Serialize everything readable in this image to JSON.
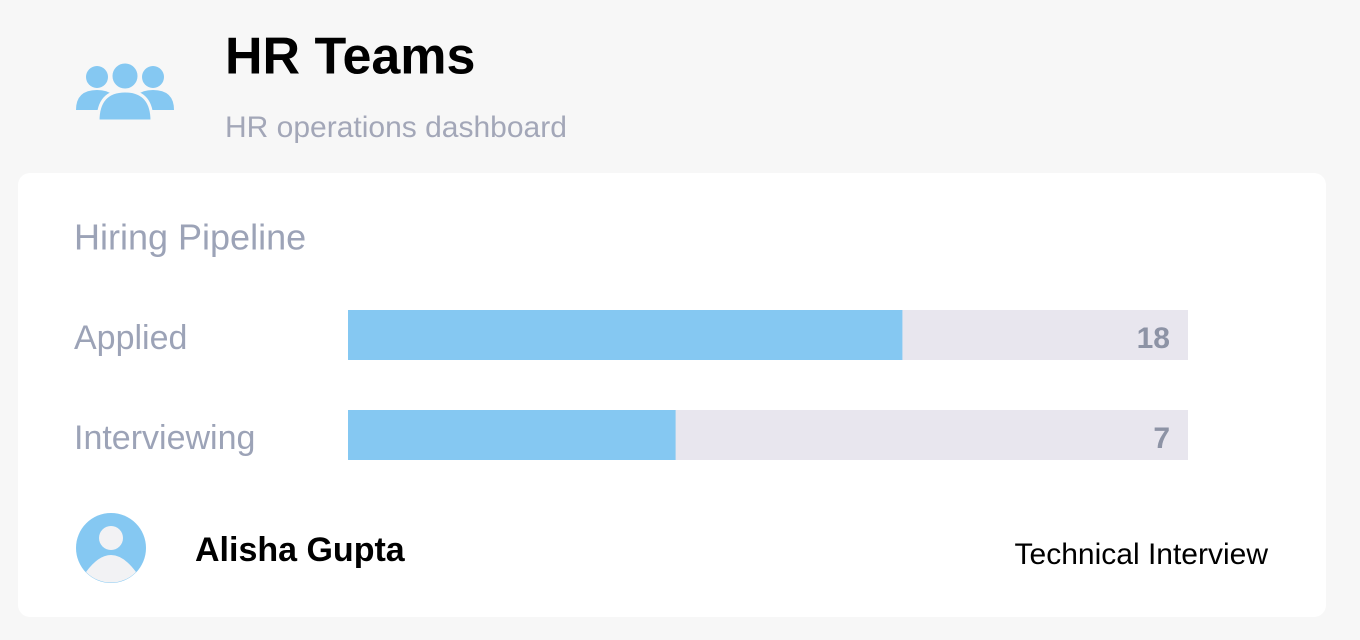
{
  "header": {
    "title": "HR Teams",
    "subtitle": "HR operations dashboard"
  },
  "pipeline": {
    "title": "Hiring Pipeline",
    "stages": [
      {
        "label": "Applied",
        "count": 18,
        "fill_percent": 66
      },
      {
        "label": "Interviewing",
        "count": 7,
        "fill_percent": 39
      }
    ]
  },
  "candidate": {
    "name": "Alisha Gupta",
    "status": "Technical Interview"
  }
}
